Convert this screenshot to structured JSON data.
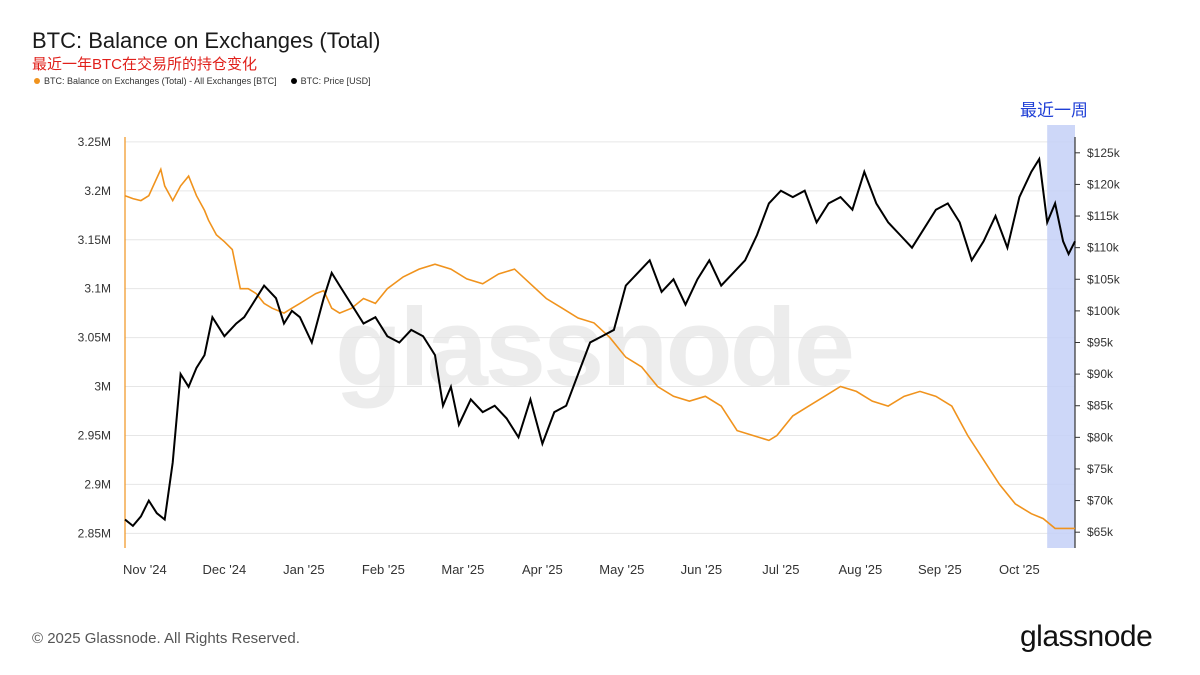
{
  "header": {
    "title": "BTC: Balance on Exchanges (Total)",
    "subtitle": "最近一年BTC在交易所的持仓变化",
    "legend_balance": "BTC: Balance on Exchanges (Total) - All Exchanges [BTC]",
    "legend_price": "BTC: Price [USD]"
  },
  "annotation": {
    "highlight_label": "最近一周"
  },
  "watermark": "glassnode",
  "footer": {
    "copyright": "© 2025 Glassnode. All Rights Reserved.",
    "brand": "glassnode"
  },
  "colors": {
    "balance": "#f0931d",
    "price": "#000000",
    "highlight": "#c4d0f7",
    "highlight_edge": "#3b5bdb",
    "grid": "#e6e6e6"
  },
  "chart_data": {
    "type": "line",
    "title": "BTC: Balance on Exchanges (Total)",
    "x_labels": [
      "Nov '24",
      "Dec '24",
      "Jan '25",
      "Feb '25",
      "Mar '25",
      "Apr '25",
      "May '25",
      "Jun '25",
      "Jul '25",
      "Aug '25",
      "Sep '25",
      "Oct '25"
    ],
    "x_range": [
      0,
      11.95
    ],
    "highlight_range": [
      11.6,
      11.95
    ],
    "left_axis": {
      "ticks": [
        2.85,
        2.9,
        2.95,
        3.0,
        3.05,
        3.1,
        3.15,
        3.2,
        3.25
      ],
      "tick_labels": [
        "2.85M",
        "2.9M",
        "2.95M",
        "3M",
        "3.05M",
        "3.1M",
        "3.15M",
        "3.2M",
        "3.25M"
      ],
      "range": [
        2.835,
        3.255
      ]
    },
    "right_axis": {
      "ticks": [
        65,
        70,
        75,
        80,
        85,
        90,
        95,
        100,
        105,
        110,
        115,
        120,
        125
      ],
      "tick_labels": [
        "$65k",
        "$70k",
        "$75k",
        "$80k",
        "$85k",
        "$90k",
        "$95k",
        "$100k",
        "$105k",
        "$110k",
        "$115k",
        "$120k",
        "$125k"
      ],
      "range": [
        62.5,
        127.5
      ]
    },
    "series": [
      {
        "name": "BTC: Balance on Exchanges (Total) - All Exchanges [BTC]",
        "axis": "left",
        "x": [
          0,
          0.1,
          0.2,
          0.3,
          0.45,
          0.5,
          0.6,
          0.7,
          0.8,
          0.9,
          1.0,
          1.05,
          1.15,
          1.25,
          1.35,
          1.45,
          1.55,
          1.65,
          1.75,
          1.85,
          2.0,
          2.1,
          2.2,
          2.3,
          2.4,
          2.5,
          2.6,
          2.7,
          2.85,
          3.0,
          3.15,
          3.3,
          3.5,
          3.7,
          3.9,
          4.1,
          4.3,
          4.5,
          4.7,
          4.9,
          5.1,
          5.3,
          5.5,
          5.7,
          5.9,
          6.1,
          6.3,
          6.5,
          6.7,
          6.9,
          7.1,
          7.3,
          7.5,
          7.7,
          7.9,
          8.1,
          8.2,
          8.4,
          8.6,
          8.8,
          9.0,
          9.2,
          9.4,
          9.6,
          9.8,
          10.0,
          10.2,
          10.4,
          10.6,
          10.8,
          11.0,
          11.2,
          11.4,
          11.55,
          11.7,
          11.8,
          11.95
        ],
        "values": [
          3.195,
          3.192,
          3.19,
          3.195,
          3.222,
          3.205,
          3.19,
          3.205,
          3.215,
          3.195,
          3.18,
          3.17,
          3.155,
          3.148,
          3.14,
          3.1,
          3.1,
          3.095,
          3.085,
          3.08,
          3.075,
          3.08,
          3.085,
          3.09,
          3.095,
          3.098,
          3.08,
          3.075,
          3.08,
          3.09,
          3.085,
          3.1,
          3.112,
          3.12,
          3.125,
          3.12,
          3.11,
          3.105,
          3.115,
          3.12,
          3.105,
          3.09,
          3.08,
          3.07,
          3.065,
          3.05,
          3.03,
          3.02,
          3.0,
          2.99,
          2.985,
          2.99,
          2.98,
          2.955,
          2.95,
          2.945,
          2.95,
          2.97,
          2.98,
          2.99,
          3.0,
          2.995,
          2.985,
          2.98,
          2.99,
          2.995,
          2.99,
          2.98,
          2.95,
          2.925,
          2.9,
          2.88,
          2.87,
          2.865,
          2.855,
          2.855,
          2.855
        ]
      },
      {
        "name": "BTC: Price [USD]",
        "axis": "right",
        "x": [
          0,
          0.1,
          0.2,
          0.3,
          0.4,
          0.5,
          0.6,
          0.7,
          0.8,
          0.9,
          1.0,
          1.1,
          1.25,
          1.4,
          1.5,
          1.6,
          1.75,
          1.9,
          2.0,
          2.1,
          2.2,
          2.35,
          2.5,
          2.6,
          2.7,
          2.85,
          3.0,
          3.15,
          3.3,
          3.45,
          3.6,
          3.75,
          3.9,
          4.0,
          4.1,
          4.2,
          4.35,
          4.5,
          4.65,
          4.8,
          4.95,
          5.1,
          5.25,
          5.4,
          5.55,
          5.7,
          5.85,
          6.0,
          6.15,
          6.3,
          6.45,
          6.6,
          6.75,
          6.9,
          7.05,
          7.2,
          7.35,
          7.5,
          7.65,
          7.8,
          7.95,
          8.1,
          8.25,
          8.4,
          8.55,
          8.7,
          8.85,
          9.0,
          9.15,
          9.3,
          9.45,
          9.6,
          9.75,
          9.9,
          10.05,
          10.2,
          10.35,
          10.5,
          10.65,
          10.8,
          10.95,
          11.1,
          11.25,
          11.4,
          11.5,
          11.6,
          11.7,
          11.8,
          11.87,
          11.95
        ],
        "values": [
          67,
          66,
          67.5,
          70,
          68,
          67,
          76,
          90,
          88,
          91,
          93,
          99,
          96,
          98,
          99,
          101,
          104,
          102,
          98,
          100,
          99,
          95,
          102,
          106,
          104,
          101,
          98,
          99,
          96,
          95,
          97,
          96,
          93,
          85,
          88,
          82,
          86,
          84,
          85,
          83,
          80,
          86,
          79,
          84,
          85,
          90,
          95,
          96,
          97,
          104,
          106,
          108,
          103,
          105,
          101,
          105,
          108,
          104,
          106,
          108,
          112,
          117,
          119,
          118,
          119,
          114,
          117,
          118,
          116,
          122,
          117,
          114,
          112,
          110,
          113,
          116,
          117,
          114,
          108,
          111,
          115,
          110,
          118,
          122,
          124,
          114,
          117,
          111,
          109,
          111
        ]
      }
    ]
  }
}
